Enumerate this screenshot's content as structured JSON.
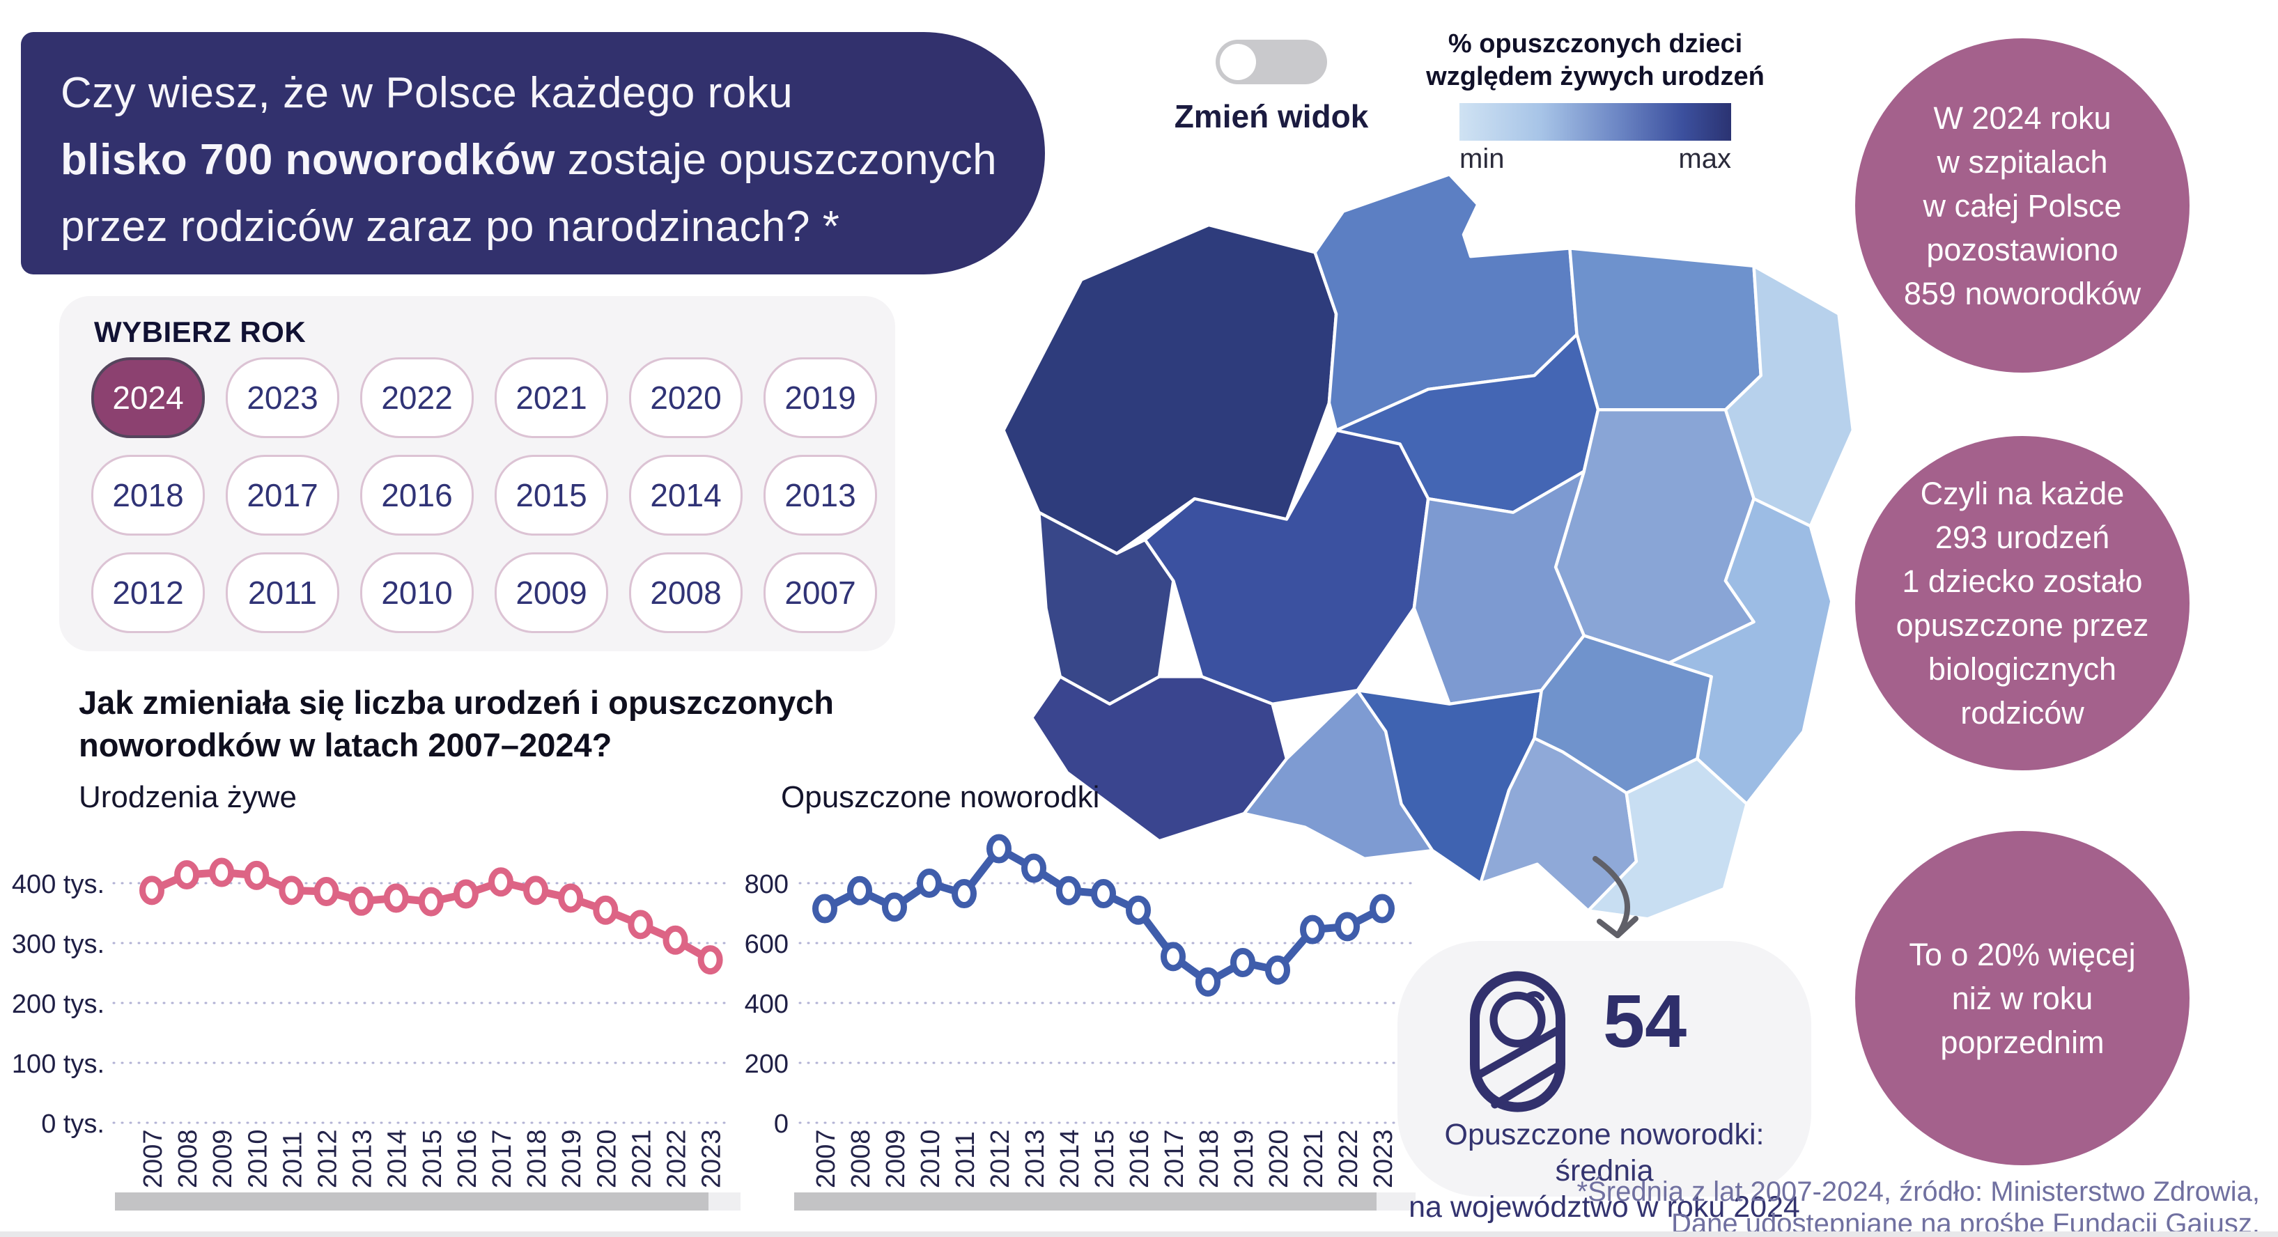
{
  "header": {
    "line1": "Czy wiesz, że w Polsce każdego roku",
    "line2_bold": "blisko 700 noworodków",
    "line2_rest": " zostaje opuszczonych",
    "line3": "przez rodziców zaraz po narodzinach? *"
  },
  "year_selector": {
    "title": "WYBIERZ ROK",
    "selected_year": "2024",
    "years": [
      "2024",
      "2023",
      "2022",
      "2021",
      "2020",
      "2019",
      "2018",
      "2017",
      "2016",
      "2015",
      "2014",
      "2013",
      "2012",
      "2011",
      "2010",
      "2009",
      "2008",
      "2007"
    ]
  },
  "view_toggle": {
    "label": "Zmień widok",
    "state": "off"
  },
  "map_legend": {
    "title_line1": "% opuszczonych dzieci",
    "title_line2": "względem żywych urodzeń",
    "min_label": "min",
    "max_label": "max",
    "gradient_from": "#cfe2f3",
    "gradient_to": "#2b3372"
  },
  "map": {
    "regions": [
      {
        "id": "zachodniopomorskie",
        "name": "zachodniopomorskie",
        "color": "#2e3c7c"
      },
      {
        "id": "pomorskie",
        "name": "pomorskie",
        "color": "#5c7fc3"
      },
      {
        "id": "warminsko-mazurskie",
        "name": "warmińsko-mazurskie",
        "color": "#6e92cd"
      },
      {
        "id": "podlaskie",
        "name": "podlaskie",
        "color": "#b7d1ec"
      },
      {
        "id": "kujawsko-pomorskie",
        "name": "kujawsko-pomorskie",
        "color": "#4466b4"
      },
      {
        "id": "mazowieckie",
        "name": "mazowieckie",
        "color": "#89a5d6"
      },
      {
        "id": "lubuskie",
        "name": "lubuskie",
        "color": "#384789"
      },
      {
        "id": "wielkopolskie",
        "name": "wielkopolskie",
        "color": "#3b51a0"
      },
      {
        "id": "lodzkie",
        "name": "łódzkie",
        "color": "#7d9ad1"
      },
      {
        "id": "lubelskie",
        "name": "lubelskie",
        "color": "#9cbce4"
      },
      {
        "id": "dolnoslaskie",
        "name": "dolnośląskie",
        "color": "#3a458f"
      },
      {
        "id": "opolskie",
        "name": "opolskie",
        "color": "#7e9bd2"
      },
      {
        "id": "slaskie",
        "name": "śląskie",
        "color": "#3f63b1"
      },
      {
        "id": "swietokrzyskie",
        "name": "świętokrzyskie",
        "color": "#7093cc"
      },
      {
        "id": "malopolskie",
        "name": "małopolskie",
        "color": "#8fa9d8"
      },
      {
        "id": "podkarpackie",
        "name": "podkarpackie",
        "color": "#c8def2"
      }
    ]
  },
  "section_title": {
    "line1": "Jak zmieniała się liczba urodzeń i opuszczonych",
    "line2": "noworodków w latach 2007–2024?"
  },
  "chart_data": [
    {
      "type": "line",
      "title": "Urodzenia żywe",
      "x": [
        2007,
        2008,
        2009,
        2010,
        2011,
        2012,
        2013,
        2014,
        2015,
        2016,
        2017,
        2018,
        2019,
        2020,
        2021,
        2022,
        2023
      ],
      "values": [
        388000,
        414000,
        418000,
        413000,
        388000,
        386000,
        370000,
        375000,
        369000,
        382000,
        402000,
        388000,
        375000,
        355000,
        331000,
        305000,
        272000
      ],
      "y_ticks": [
        {
          "value": 0,
          "label": "0 tys."
        },
        {
          "value": 100000,
          "label": "100 tys."
        },
        {
          "value": 200000,
          "label": "200 tys."
        },
        {
          "value": 300000,
          "label": "300 tys."
        },
        {
          "value": 400000,
          "label": "400 tys."
        }
      ],
      "ylim": [
        0,
        450000
      ],
      "grid": "dotted",
      "legend_position": "none",
      "line_color": "#dd6485",
      "marker_fill": "#ffffff"
    },
    {
      "type": "line",
      "title": "Opuszczone noworodki",
      "x": [
        2007,
        2008,
        2009,
        2010,
        2011,
        2012,
        2013,
        2014,
        2015,
        2016,
        2017,
        2018,
        2019,
        2020,
        2021,
        2022,
        2023
      ],
      "values": [
        715,
        775,
        720,
        800,
        765,
        915,
        850,
        775,
        765,
        710,
        555,
        470,
        535,
        510,
        645,
        655,
        715
      ],
      "y_ticks": [
        {
          "value": 0,
          "label": "0"
        },
        {
          "value": 200,
          "label": "200"
        },
        {
          "value": 400,
          "label": "400"
        },
        {
          "value": 600,
          "label": "600"
        },
        {
          "value": 800,
          "label": "800"
        }
      ],
      "ylim": [
        0,
        950
      ],
      "grid": "dotted",
      "legend_position": "none",
      "line_color": "#3f5dab",
      "marker_fill": "#ffffff"
    }
  ],
  "stat_circles": [
    {
      "lines": [
        "W 2024 roku",
        "w szpitalach",
        "w całej Polsce",
        "pozostawiono",
        "859 noworodków"
      ]
    },
    {
      "lines": [
        "Czyli na każde",
        "293 urodzeń",
        "1 dziecko zostało",
        "opuszczone przez",
        "biologicznych",
        "rodziców"
      ]
    },
    {
      "lines": [
        "To o 20% więcej",
        "niż w roku",
        "poprzednim"
      ]
    }
  ],
  "average_card": {
    "value": "54",
    "caption_line1": "Opuszczone noworodki: średnia",
    "caption_line2": "na województwo w roku 2024",
    "icon": "swaddled-baby-icon"
  },
  "footnote": {
    "line1": "*Średnia z lat 2007-2024, źródło: Ministerstwo Zdrowia,",
    "line2": "Dane udostępniane na prośbę Fundacji Gajusz."
  },
  "colors": {
    "banner_bg": "#32316d",
    "selected_year_bg": "#8c4170",
    "stat_circle_bg": "#a4618c",
    "births_line": "#dd6485",
    "abandoned_line": "#3f5dab"
  }
}
